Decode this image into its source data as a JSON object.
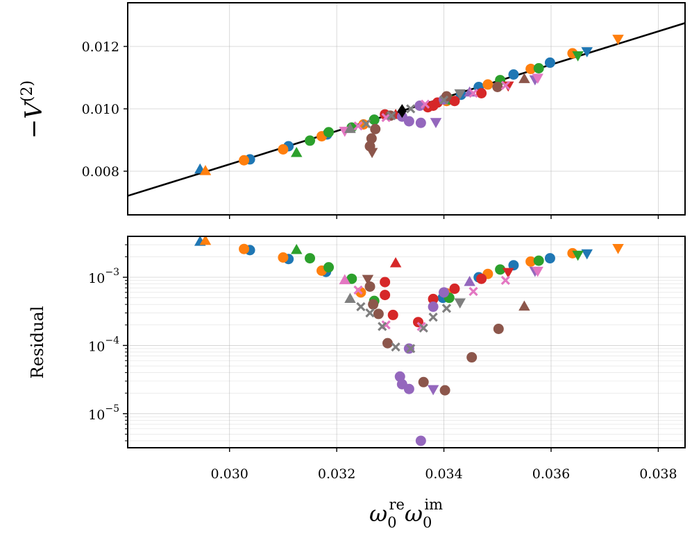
{
  "chart_data": [
    {
      "type": "scatter",
      "panel": "top",
      "ylabel": "−V^{(2)}",
      "xlim": [
        0.0281,
        0.0385
      ],
      "ylim": [
        0.0066,
        0.0134
      ],
      "xticks": [
        0.03,
        0.032,
        0.034,
        0.036,
        0.038
      ],
      "yticks": [
        0.008,
        0.01,
        0.012
      ],
      "ytick_labels": [
        "0.008",
        "0.010",
        "0.012"
      ],
      "grid": true,
      "fit_line": {
        "color": "#000000",
        "x": [
          0.0281,
          0.0385
        ],
        "y": [
          0.00721,
          0.01275
        ]
      },
      "special_point": {
        "marker": "diamond",
        "color": "#000000",
        "x": 0.03322,
        "y": 0.00993
      },
      "series": [
        {
          "name": "blue",
          "color": "#1f77b4",
          "points": [
            {
              "x": 0.02945,
              "y": 0.00805,
              "m": "^"
            },
            {
              "x": 0.03038,
              "y": 0.00838,
              "m": "o"
            },
            {
              "x": 0.0311,
              "y": 0.0088,
              "m": "o"
            },
            {
              "x": 0.03182,
              "y": 0.00918,
              "m": "o"
            },
            {
              "x": 0.0327,
              "y": 0.00965,
              "m": "o"
            },
            {
              "x": 0.03432,
              "y": 0.01045,
              "m": "o"
            },
            {
              "x": 0.03465,
              "y": 0.0107,
              "m": "o"
            },
            {
              "x": 0.0353,
              "y": 0.0111,
              "m": "o"
            },
            {
              "x": 0.03598,
              "y": 0.01148,
              "m": "o"
            },
            {
              "x": 0.03667,
              "y": 0.01185,
              "m": "v"
            }
          ]
        },
        {
          "name": "orange",
          "color": "#ff7f0e",
          "points": [
            {
              "x": 0.02955,
              "y": 0.008,
              "m": "^"
            },
            {
              "x": 0.03027,
              "y": 0.00835,
              "m": "o"
            },
            {
              "x": 0.031,
              "y": 0.0087,
              "m": "o"
            },
            {
              "x": 0.03172,
              "y": 0.00912,
              "m": "o"
            },
            {
              "x": 0.0325,
              "y": 0.0095,
              "m": "o"
            },
            {
              "x": 0.03405,
              "y": 0.01025,
              "m": "o"
            },
            {
              "x": 0.03482,
              "y": 0.01078,
              "m": "o"
            },
            {
              "x": 0.03562,
              "y": 0.01128,
              "m": "o"
            },
            {
              "x": 0.0364,
              "y": 0.01178,
              "m": "o"
            },
            {
              "x": 0.03725,
              "y": 0.01225,
              "m": "v"
            }
          ]
        },
        {
          "name": "green",
          "color": "#2ca02c",
          "points": [
            {
              "x": 0.03125,
              "y": 0.00858,
              "m": "^"
            },
            {
              "x": 0.0315,
              "y": 0.00898,
              "m": "o"
            },
            {
              "x": 0.03185,
              "y": 0.00925,
              "m": "o"
            },
            {
              "x": 0.03228,
              "y": 0.0094,
              "m": "o"
            },
            {
              "x": 0.0327,
              "y": 0.00965,
              "m": "o"
            },
            {
              "x": 0.0341,
              "y": 0.0103,
              "m": "o"
            },
            {
              "x": 0.03505,
              "y": 0.01092,
              "m": "o"
            },
            {
              "x": 0.03577,
              "y": 0.0113,
              "m": "o"
            },
            {
              "x": 0.0365,
              "y": 0.01172,
              "m": "v"
            }
          ]
        },
        {
          "name": "red",
          "color": "#d62728",
          "points": [
            {
              "x": 0.0329,
              "y": 0.00982,
              "m": "o"
            },
            {
              "x": 0.0331,
              "y": 0.0098,
              "m": "^"
            },
            {
              "x": 0.0337,
              "y": 0.01005,
              "m": "o"
            },
            {
              "x": 0.0338,
              "y": 0.0101,
              "m": "o"
            },
            {
              "x": 0.03388,
              "y": 0.0102,
              "m": "o"
            },
            {
              "x": 0.0342,
              "y": 0.01025,
              "m": "o"
            },
            {
              "x": 0.0347,
              "y": 0.0105,
              "m": "o"
            },
            {
              "x": 0.0352,
              "y": 0.01075,
              "m": "v"
            }
          ]
        },
        {
          "name": "purple",
          "color": "#9467bd",
          "points": [
            {
              "x": 0.03322,
              "y": 0.00975,
              "m": "o"
            },
            {
              "x": 0.03335,
              "y": 0.0096,
              "m": "o"
            },
            {
              "x": 0.03357,
              "y": 0.00955,
              "m": "o"
            },
            {
              "x": 0.03385,
              "y": 0.00958,
              "m": "v"
            },
            {
              "x": 0.03355,
              "y": 0.0101,
              "m": "o"
            },
            {
              "x": 0.034,
              "y": 0.0103,
              "m": "o"
            },
            {
              "x": 0.03448,
              "y": 0.01052,
              "m": "^"
            },
            {
              "x": 0.0357,
              "y": 0.01095,
              "m": "v"
            }
          ]
        },
        {
          "name": "brown",
          "color": "#8c564b",
          "points": [
            {
              "x": 0.03262,
              "y": 0.0088,
              "m": "o"
            },
            {
              "x": 0.03265,
              "y": 0.00905,
              "m": "o"
            },
            {
              "x": 0.03272,
              "y": 0.00935,
              "m": "o"
            },
            {
              "x": 0.03266,
              "y": 0.00862,
              "m": "v"
            },
            {
              "x": 0.033,
              "y": 0.00978,
              "m": "o"
            },
            {
              "x": 0.03405,
              "y": 0.0104,
              "m": "o"
            },
            {
              "x": 0.035,
              "y": 0.0107,
              "m": "o"
            },
            {
              "x": 0.0355,
              "y": 0.01095,
              "m": "^"
            }
          ]
        },
        {
          "name": "pink",
          "color": "#e377c2",
          "points": [
            {
              "x": 0.03215,
              "y": 0.0093,
              "m": "v"
            },
            {
              "x": 0.0324,
              "y": 0.00945,
              "m": "x"
            },
            {
              "x": 0.03292,
              "y": 0.00972,
              "m": "x"
            },
            {
              "x": 0.03365,
              "y": 0.01015,
              "m": "x"
            },
            {
              "x": 0.03455,
              "y": 0.0105,
              "m": "x"
            },
            {
              "x": 0.03515,
              "y": 0.01075,
              "m": "x"
            },
            {
              "x": 0.03575,
              "y": 0.011,
              "m": "v"
            }
          ]
        },
        {
          "name": "gray",
          "color": "#7f7f7f",
          "points": [
            {
              "x": 0.03225,
              "y": 0.00935,
              "m": "^"
            },
            {
              "x": 0.03255,
              "y": 0.00952,
              "m": "x"
            },
            {
              "x": 0.03302,
              "y": 0.00978,
              "m": "x"
            },
            {
              "x": 0.03338,
              "y": 0.01,
              "m": "x"
            },
            {
              "x": 0.034,
              "y": 0.01028,
              "m": "x"
            },
            {
              "x": 0.0343,
              "y": 0.0105,
              "m": "v"
            }
          ]
        }
      ]
    },
    {
      "type": "scatter",
      "panel": "bottom",
      "yscale": "log",
      "ylabel": "Residual",
      "xlabel": "ω₀ʳᵉω₀ⁱᵐ",
      "xlim": [
        0.0281,
        0.0385
      ],
      "ylim_log10": [
        -5.5,
        -2.4
      ],
      "xticks": [
        0.03,
        0.032,
        0.034,
        0.036,
        0.038
      ],
      "xtick_labels": [
        "0.030",
        "0.032",
        "0.034",
        "0.036",
        "0.038"
      ],
      "yticks_log10": [
        -5,
        -4,
        -3
      ],
      "grid": true,
      "series": [
        {
          "name": "blue",
          "color": "#1f77b4",
          "points": [
            {
              "x": 0.02945,
              "y": 0.0033,
              "m": "^"
            },
            {
              "x": 0.03038,
              "y": 0.0025,
              "m": "o"
            },
            {
              "x": 0.0311,
              "y": 0.00185,
              "m": "o"
            },
            {
              "x": 0.0318,
              "y": 0.0012,
              "m": "o"
            },
            {
              "x": 0.03398,
              "y": 0.0005,
              "m": "o"
            },
            {
              "x": 0.03465,
              "y": 0.001,
              "m": "o"
            },
            {
              "x": 0.0353,
              "y": 0.0015,
              "m": "o"
            },
            {
              "x": 0.03598,
              "y": 0.0019,
              "m": "o"
            },
            {
              "x": 0.03667,
              "y": 0.00225,
              "m": "v"
            }
          ]
        },
        {
          "name": "orange",
          "color": "#ff7f0e",
          "points": [
            {
              "x": 0.02955,
              "y": 0.0034,
              "m": "^"
            },
            {
              "x": 0.03027,
              "y": 0.0026,
              "m": "o"
            },
            {
              "x": 0.031,
              "y": 0.00195,
              "m": "o"
            },
            {
              "x": 0.03172,
              "y": 0.00125,
              "m": "o"
            },
            {
              "x": 0.03245,
              "y": 0.0006,
              "m": "o"
            },
            {
              "x": 0.03405,
              "y": 0.00058,
              "m": "o"
            },
            {
              "x": 0.03482,
              "y": 0.00112,
              "m": "o"
            },
            {
              "x": 0.03562,
              "y": 0.0017,
              "m": "o"
            },
            {
              "x": 0.0364,
              "y": 0.00225,
              "m": "o"
            },
            {
              "x": 0.03725,
              "y": 0.0027,
              "m": "v"
            }
          ]
        },
        {
          "name": "green",
          "color": "#2ca02c",
          "points": [
            {
              "x": 0.03125,
              "y": 0.0025,
              "m": "^"
            },
            {
              "x": 0.0315,
              "y": 0.0019,
              "m": "o"
            },
            {
              "x": 0.03185,
              "y": 0.0014,
              "m": "o"
            },
            {
              "x": 0.03228,
              "y": 0.00095,
              "m": "o"
            },
            {
              "x": 0.0327,
              "y": 0.00045,
              "m": "o"
            },
            {
              "x": 0.0341,
              "y": 0.0005,
              "m": "o"
            },
            {
              "x": 0.03505,
              "y": 0.0013,
              "m": "o"
            },
            {
              "x": 0.03577,
              "y": 0.00175,
              "m": "o"
            },
            {
              "x": 0.0365,
              "y": 0.00215,
              "m": "v"
            }
          ]
        },
        {
          "name": "red",
          "color": "#d62728",
          "points": [
            {
              "x": 0.0331,
              "y": 0.0016,
              "m": "^"
            },
            {
              "x": 0.0329,
              "y": 0.00085,
              "m": "o"
            },
            {
              "x": 0.0329,
              "y": 0.00055,
              "m": "o"
            },
            {
              "x": 0.03305,
              "y": 0.00028,
              "m": "o"
            },
            {
              "x": 0.03352,
              "y": 0.00022,
              "m": "o"
            },
            {
              "x": 0.0338,
              "y": 0.00048,
              "m": "o"
            },
            {
              "x": 0.0342,
              "y": 0.00068,
              "m": "o"
            },
            {
              "x": 0.0347,
              "y": 0.00095,
              "m": "o"
            },
            {
              "x": 0.0352,
              "y": 0.0012,
              "m": "v"
            }
          ]
        },
        {
          "name": "purple",
          "color": "#9467bd",
          "points": [
            {
              "x": 0.03318,
              "y": 3.5e-05,
              "m": "o"
            },
            {
              "x": 0.03322,
              "y": 2.7e-05,
              "m": "o"
            },
            {
              "x": 0.03335,
              "y": 2.3e-05,
              "m": "o"
            },
            {
              "x": 0.03335,
              "y": 9e-05,
              "m": "o"
            },
            {
              "x": 0.03357,
              "y": 4e-06,
              "m": "o"
            },
            {
              "x": 0.0338,
              "y": 2.3e-05,
              "m": "v"
            },
            {
              "x": 0.0338,
              "y": 0.00037,
              "m": "o"
            },
            {
              "x": 0.034,
              "y": 0.0006,
              "m": "o"
            },
            {
              "x": 0.03448,
              "y": 0.00085,
              "m": "^"
            },
            {
              "x": 0.0357,
              "y": 0.00125,
              "m": "v"
            }
          ]
        },
        {
          "name": "brown",
          "color": "#8c564b",
          "points": [
            {
              "x": 0.03262,
              "y": 0.00073,
              "m": "o"
            },
            {
              "x": 0.03258,
              "y": 0.00095,
              "m": "v"
            },
            {
              "x": 0.03268,
              "y": 0.0004,
              "m": "o"
            },
            {
              "x": 0.03278,
              "y": 0.00029,
              "m": "o"
            },
            {
              "x": 0.03295,
              "y": 0.000108,
              "m": "o"
            },
            {
              "x": 0.03362,
              "y": 2.9e-05,
              "m": "o"
            },
            {
              "x": 0.03402,
              "y": 2.2e-05,
              "m": "o"
            },
            {
              "x": 0.03452,
              "y": 6.7e-05,
              "m": "o"
            },
            {
              "x": 0.03502,
              "y": 0.000175,
              "m": "o"
            },
            {
              "x": 0.0355,
              "y": 0.00037,
              "m": "^"
            }
          ]
        },
        {
          "name": "pink",
          "color": "#e377c2",
          "points": [
            {
              "x": 0.03215,
              "y": 0.0009,
              "m": "^"
            },
            {
              "x": 0.0324,
              "y": 0.00065,
              "m": "x"
            },
            {
              "x": 0.03292,
              "y": 0.0002,
              "m": "x"
            },
            {
              "x": 0.03358,
              "y": 0.00019,
              "m": "x"
            },
            {
              "x": 0.03455,
              "y": 0.00062,
              "m": "x"
            },
            {
              "x": 0.03515,
              "y": 0.0009,
              "m": "x"
            },
            {
              "x": 0.03575,
              "y": 0.00125,
              "m": "v"
            }
          ]
        },
        {
          "name": "gray",
          "color": "#7f7f7f",
          "points": [
            {
              "x": 0.03225,
              "y": 0.00048,
              "m": "^"
            },
            {
              "x": 0.03245,
              "y": 0.00037,
              "m": "x"
            },
            {
              "x": 0.03262,
              "y": 0.0003,
              "m": "x"
            },
            {
              "x": 0.03285,
              "y": 0.00019,
              "m": "x"
            },
            {
              "x": 0.0331,
              "y": 9.5e-05,
              "m": "x"
            },
            {
              "x": 0.03338,
              "y": 9e-05,
              "m": "x"
            },
            {
              "x": 0.03362,
              "y": 0.00018,
              "m": "x"
            },
            {
              "x": 0.0338,
              "y": 0.00026,
              "m": "x"
            },
            {
              "x": 0.03405,
              "y": 0.00035,
              "m": "x"
            },
            {
              "x": 0.0343,
              "y": 0.00043,
              "m": "v"
            }
          ]
        }
      ]
    }
  ]
}
